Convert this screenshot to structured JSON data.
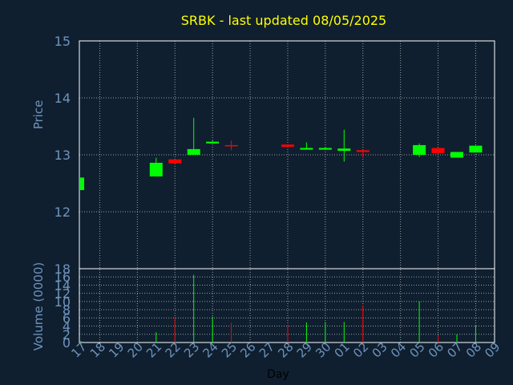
{
  "colors": {
    "background": "#0f1f2f",
    "title": "#ffff00",
    "axis_text": "#6f93bd",
    "frame": "#ffffff",
    "grid": "#c8c8c8",
    "up": "#00ff00",
    "down": "#ff0000"
  },
  "chart_data": [
    {
      "type": "candlestick",
      "title": "SRBK - last updated 08/05/2025",
      "ylabel": "Price",
      "ylim": [
        11,
        15
      ],
      "yticks": [
        "12",
        "13",
        "14",
        "15"
      ],
      "grid": true,
      "x": [
        "17",
        "18",
        "19",
        "20",
        "21",
        "22",
        "23",
        "24",
        "25",
        "26",
        "27",
        "28",
        "29",
        "30",
        "01",
        "02",
        "03",
        "04",
        "05",
        "06",
        "07",
        "08",
        "09"
      ],
      "series": [
        {
          "candles": [
            {
              "x": "17",
              "open": 12.38,
              "high": 12.6,
              "low": 12.38,
              "close": 12.6
            },
            {
              "x": "21",
              "open": 12.62,
              "high": 12.95,
              "low": 12.62,
              "close": 12.86
            },
            {
              "x": "22",
              "open": 12.92,
              "high": 12.92,
              "low": 12.83,
              "close": 12.85
            },
            {
              "x": "23",
              "open": 13.0,
              "high": 13.65,
              "low": 13.0,
              "close": 13.1
            },
            {
              "x": "24",
              "open": 13.2,
              "high": 13.25,
              "low": 13.2,
              "close": 13.23
            },
            {
              "x": "25",
              "open": 13.17,
              "high": 13.25,
              "low": 13.08,
              "close": 13.16
            },
            {
              "x": "28",
              "open": 13.18,
              "high": 13.18,
              "low": 13.13,
              "close": 13.14
            },
            {
              "x": "29",
              "open": 13.09,
              "high": 13.22,
              "low": 13.09,
              "close": 13.12
            },
            {
              "x": "30",
              "open": 13.09,
              "high": 13.14,
              "low": 13.09,
              "close": 13.12
            },
            {
              "x": "01",
              "open": 13.07,
              "high": 13.44,
              "low": 12.88,
              "close": 13.11
            },
            {
              "x": "02",
              "open": 13.08,
              "high": 13.08,
              "low": 12.95,
              "close": 13.05
            },
            {
              "x": "05",
              "open": 13.0,
              "high": 13.2,
              "low": 12.96,
              "close": 13.17
            },
            {
              "x": "06",
              "open": 13.12,
              "high": 13.12,
              "low": 13.01,
              "close": 13.03
            },
            {
              "x": "07",
              "open": 12.95,
              "high": 13.05,
              "low": 12.95,
              "close": 13.05
            },
            {
              "x": "08",
              "open": 13.04,
              "high": 13.16,
              "low": 13.04,
              "close": 13.16
            }
          ]
        }
      ]
    },
    {
      "type": "bar",
      "ylabel": "Volume (0000)",
      "xlabel": "Day",
      "ylim": [
        0,
        18
      ],
      "yticks": [
        "0",
        "2",
        "4",
        "6",
        "8",
        "10",
        "12",
        "14",
        "16",
        "18"
      ],
      "grid": true,
      "categories": [
        "17",
        "18",
        "19",
        "20",
        "21",
        "22",
        "23",
        "24",
        "25",
        "26",
        "27",
        "28",
        "29",
        "30",
        "01",
        "02",
        "03",
        "04",
        "05",
        "06",
        "07",
        "08",
        "09"
      ],
      "series": [
        {
          "values": [
            0.4,
            0,
            0,
            0,
            2.5,
            6.2,
            16.5,
            6.3,
            4.8,
            0,
            0,
            4.3,
            4.9,
            5.0,
            5.0,
            9.0,
            0,
            0,
            10.0,
            1.7,
            2.0,
            4.1,
            0
          ]
        }
      ]
    }
  ]
}
